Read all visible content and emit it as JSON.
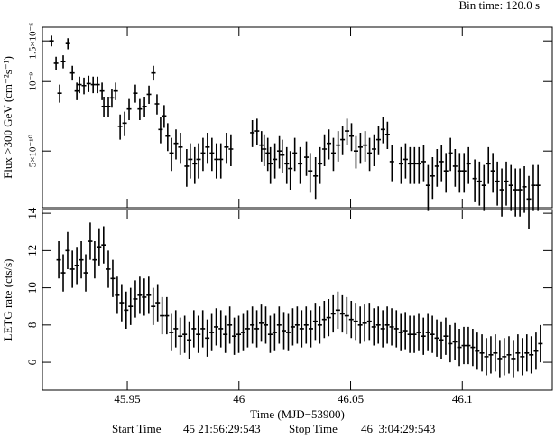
{
  "chart_data": [
    {
      "type": "errorbar",
      "ylabel": "Flux >300 GeV (cm⁻²s⁻¹)",
      "log_y": true,
      "ylim": [
        2.84e-10,
        1.72e-09
      ],
      "yticks": [
        {
          "value": 5e-10,
          "label": "5×10⁻¹⁰"
        },
        {
          "value": 1e-09,
          "label": "10⁻⁹"
        },
        {
          "value": 1.5e-09,
          "label": "1.5×10⁻⁹"
        }
      ],
      "series": [
        {
          "color": "#000000",
          "yerr": 8e-11,
          "x": [
            45.9161,
            45.9181,
            45.9197,
            45.9213,
            45.9234,
            45.9254,
            45.9274,
            45.9286,
            45.9306,
            45.9327,
            45.9347,
            45.9367,
            45.9387,
            45.9395,
            45.9415,
            45.9431,
            45.9448,
            45.9468,
            45.9488,
            45.9508,
            45.9536,
            45.9556,
            45.9577,
            45.9597,
            45.9617,
            45.9633,
            45.9649,
            45.9665,
            45.9681,
            45.9698,
            45.9718,
            45.9738,
            45.9766,
            45.9782,
            45.9802,
            45.9819,
            45.9839,
            45.9859,
            45.9879,
            45.9899,
            45.9919,
            45.9944,
            45.9964,
            46.006,
            46.0081,
            46.0101,
            46.0113,
            46.0129,
            46.0141,
            46.0161,
            46.0181,
            46.0194,
            46.0214,
            46.023,
            46.025,
            46.0274,
            46.0302,
            46.0319,
            46.0343,
            46.0363,
            46.0383,
            46.0403,
            46.0423,
            46.0444,
            46.0464,
            46.0484,
            46.0504,
            46.0524,
            46.0544,
            46.0565,
            46.0585,
            46.0605,
            46.0625,
            46.0645,
            46.0665,
            46.0685,
            46.0726,
            46.0746,
            46.0766,
            46.0786,
            46.0806,
            46.0827,
            46.0847,
            46.0867,
            46.0887,
            46.0907,
            46.0927,
            46.0947,
            46.0968,
            46.0988,
            46.1008,
            46.1028,
            46.1056,
            46.1077,
            46.1097,
            46.1117,
            46.1137,
            46.1157,
            46.1177,
            46.1197,
            46.1218,
            46.1238,
            46.1258,
            46.1278,
            46.1298,
            46.1318,
            46.1339
          ],
          "values": [
            1.5e-09,
            1.2e-09,
            8.9e-10,
            1.22e-09,
            1.46e-09,
            1.09e-09,
            9.1e-10,
            9.7e-10,
            9.6e-10,
            9.8e-10,
            9.7e-10,
            9.7e-10,
            9.1e-10,
            7.8e-10,
            7.8e-10,
            8.5e-10,
            9.1e-10,
            6.4e-10,
            6.6e-10,
            7.6e-10,
            8.9e-10,
            7.6e-10,
            7.8e-10,
            8.8e-10,
            1.09e-09,
            8e-10,
            6.2e-10,
            7.1e-10,
            5.8e-10,
            4.9e-10,
            5.4e-10,
            5.2e-10,
            4.3e-10,
            4.6e-10,
            4.4e-10,
            4.6e-10,
            4.9e-10,
            5.2e-10,
            4.9e-10,
            4.6e-10,
            4.6e-10,
            5.2e-10,
            5.1e-10,
            6e-10,
            6.1e-10,
            5.3e-10,
            5.1e-10,
            4.9e-10,
            4.4e-10,
            4.6e-10,
            5e-10,
            4.8e-10,
            4.4e-10,
            4.2e-10,
            4.9e-10,
            4.4e-10,
            4.7e-10,
            4.1e-10,
            3.9e-10,
            4.4e-10,
            5.1e-10,
            5.4e-10,
            4.9e-10,
            5.3e-10,
            5.6e-10,
            6.1e-10,
            5.8e-10,
            5e-10,
            5.2e-10,
            5.3e-10,
            4.9e-10,
            5.1e-10,
            5.6e-10,
            6.2e-10,
            5.9e-10,
            4.5e-10,
            4.4e-10,
            4.6e-10,
            4.4e-10,
            4.4e-10,
            4.4e-10,
            4.5e-10,
            3.55e-10,
            3.9e-10,
            4.3e-10,
            4.5e-10,
            4.1e-10,
            4.9e-10,
            4.3e-10,
            4.1e-10,
            4.1e-10,
            4.4e-10,
            3.8e-10,
            3.7e-10,
            3.55e-10,
            4.4e-10,
            4.1e-10,
            3.7e-10,
            3.4e-10,
            3.7e-10,
            3.55e-10,
            3.4e-10,
            3.4e-10,
            3.5e-10,
            3.1e-10,
            3.55e-10,
            3.55e-10
          ]
        }
      ]
    },
    {
      "type": "errorbar",
      "ylabel": "LETG  rate (cts/s)",
      "xlabel": "Time (MJD−53900)",
      "xlim": [
        45.912,
        46.1403
      ],
      "xticks": [
        45.95,
        46,
        46.05,
        46.1
      ],
      "ylim": [
        4.5,
        14.2
      ],
      "yticks": [
        6,
        8,
        10,
        12,
        14
      ],
      "series": [
        {
          "color": "#000000",
          "yerr": 1.0,
          "x": [
            45.9193,
            45.9213,
            45.9233,
            45.9254,
            45.9274,
            45.9294,
            45.9314,
            45.9334,
            45.9354,
            45.9374,
            45.9394,
            45.9415,
            45.9435,
            45.9455,
            45.9475,
            45.9495,
            45.9515,
            45.9536,
            45.9556,
            45.9576,
            45.9596,
            45.9616,
            45.9636,
            45.9656,
            45.9677,
            45.9697,
            45.9717,
            45.9737,
            45.9757,
            45.9777,
            45.9798,
            45.9818,
            45.9838,
            45.9858,
            45.9878,
            45.9898,
            45.9919,
            45.9939,
            45.9959,
            45.9979,
            45.9999,
            46.0019,
            46.0039,
            46.006,
            46.008,
            46.01,
            46.012,
            46.014,
            46.016,
            46.018,
            46.0201,
            46.0221,
            46.0241,
            46.0261,
            46.0281,
            46.0301,
            46.0322,
            46.0342,
            46.0362,
            46.0382,
            46.0402,
            46.0422,
            46.0443,
            46.0463,
            46.0483,
            46.0503,
            46.0523,
            46.0543,
            46.0563,
            46.0584,
            46.0604,
            46.0624,
            46.0644,
            46.0664,
            46.0684,
            46.0705,
            46.0725,
            46.0745,
            46.0765,
            46.0785,
            46.0805,
            46.0826,
            46.0846,
            46.0866,
            46.0886,
            46.0906,
            46.0926,
            46.0946,
            46.0967,
            46.0987,
            46.1007,
            46.1027,
            46.1047,
            46.1067,
            46.1088,
            46.1108,
            46.1128,
            46.1148,
            46.1168,
            46.1188,
            46.1209,
            46.1229,
            46.1249,
            46.1269,
            46.1289,
            46.1309,
            46.133,
            46.135
          ],
          "values": [
            11.5,
            10.8,
            12,
            11,
            11.2,
            11.5,
            10.8,
            12.5,
            11.5,
            12.2,
            12.3,
            11,
            10.5,
            9.6,
            9.2,
            8.8,
            9.0,
            9.4,
            9.6,
            9.5,
            9.6,
            9.0,
            9.2,
            8.5,
            8.5,
            7.6,
            7.8,
            7.4,
            7.5,
            7.2,
            7.8,
            7.5,
            7.8,
            7.3,
            7.6,
            7.9,
            7.8,
            7.5,
            8.0,
            7.4,
            7.5,
            7.6,
            7.8,
            8.0,
            7.8,
            8.1,
            8.0,
            7.5,
            7.6,
            8.0,
            7.7,
            7.6,
            7.9,
            8.0,
            7.8,
            8.0,
            7.8,
            8.2,
            8.0,
            8.3,
            8.4,
            8.6,
            8.8,
            8.6,
            8.5,
            8.3,
            8.2,
            8.0,
            8.1,
            8.2,
            7.9,
            8.0,
            7.8,
            8.0,
            7.9,
            7.8,
            7.6,
            7.7,
            7.5,
            7.5,
            7.6,
            7.4,
            7.6,
            7.5,
            7.3,
            7.2,
            7.4,
            7.0,
            7.1,
            6.8,
            6.9,
            6.9,
            6.8,
            6.6,
            6.5,
            6.3,
            6.4,
            6.5,
            6.2,
            6.3,
            6.4,
            6.2,
            6.5,
            6.3,
            6.5,
            6.4,
            6.6,
            7.0
          ]
        }
      ]
    }
  ],
  "footer": {
    "bin_time": "Bin time:  120.0 s",
    "start_label": "Start Time",
    "start": "45 21:56:29:543",
    "stop_label": "Stop Time",
    "stop": "46  3:04:29:543"
  }
}
